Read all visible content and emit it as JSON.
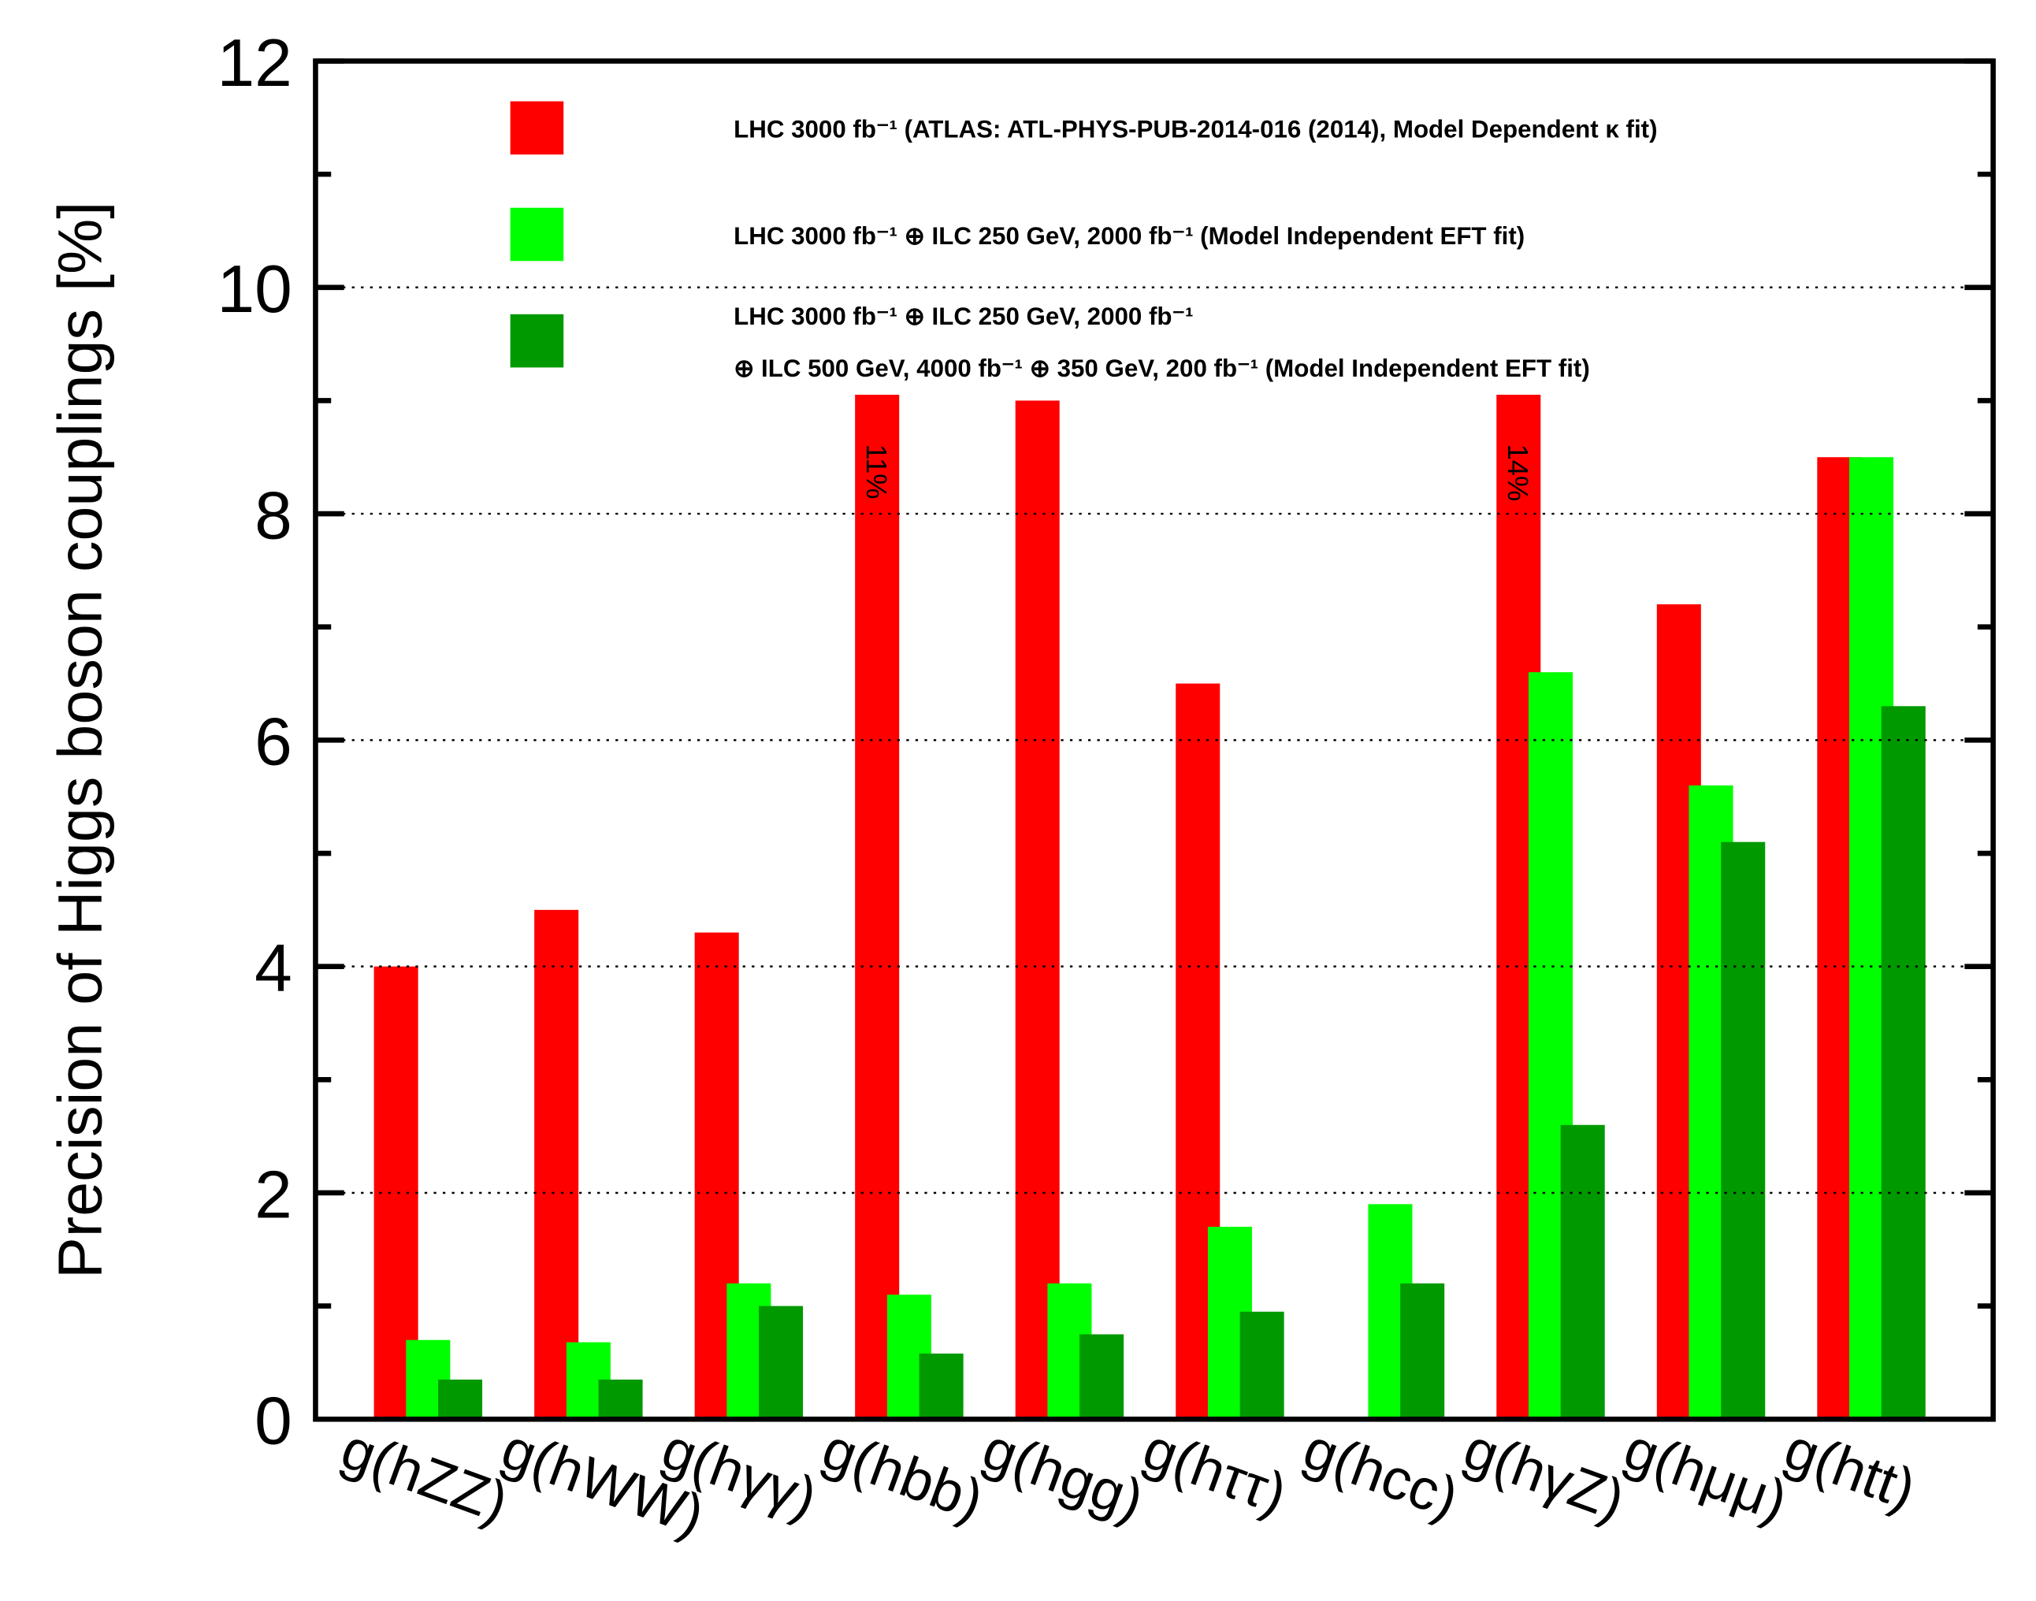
{
  "chart_data": {
    "type": "bar",
    "ylabel": "Precision of Higgs boson couplings [%]",
    "categories": [
      "g(hZZ)",
      "g(hWW)",
      "g(hγγ)",
      "g(hbb)",
      "g(hgg)",
      "g(hττ)",
      "g(hcc)",
      "g(hγZ)",
      "g(hμμ)",
      "g(htt)"
    ],
    "series": [
      {
        "name": "LHC 3000 fb⁻¹ (ATLAS: ATL-PHYS-PUB-2014-016 (2014), Model Dependent κ fit)",
        "color": "#ff0000",
        "values": [
          4.0,
          4.5,
          4.3,
          11,
          9.0,
          6.5,
          null,
          14,
          7.2,
          8.5
        ],
        "value_labels": [
          null,
          null,
          null,
          "11%",
          null,
          null,
          null,
          "14%",
          null,
          null
        ]
      },
      {
        "name": "LHC 3000 fb⁻¹ ⊕ ILC 250 GeV, 2000 fb⁻¹ (Model Independent EFT fit)",
        "color": "#00ff00",
        "values": [
          0.7,
          0.68,
          1.2,
          1.1,
          1.2,
          1.7,
          1.9,
          6.6,
          5.6,
          8.5
        ]
      },
      {
        "name": [
          "LHC 3000 fb⁻¹ ⊕ ILC 250 GeV, 2000 fb⁻¹",
          "⊕ ILC 500 GeV, 4000 fb⁻¹ ⊕ 350 GeV, 200 fb⁻¹ (Model Independent EFT fit)"
        ],
        "color": "#009900",
        "values": [
          0.35,
          0.35,
          1.0,
          0.58,
          0.75,
          0.95,
          1.2,
          2.6,
          5.1,
          6.3
        ]
      }
    ],
    "ylim": [
      0,
      12
    ],
    "yticks": [
      0,
      2,
      4,
      6,
      8,
      10,
      12
    ],
    "minor_yticks": [
      1,
      3,
      5,
      7,
      9,
      11
    ],
    "grid": true
  }
}
